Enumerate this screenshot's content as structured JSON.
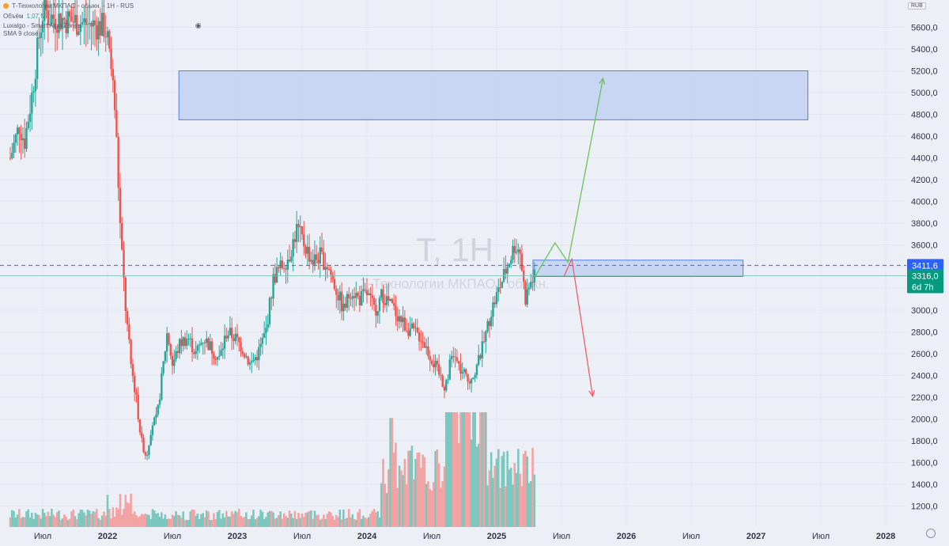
{
  "header": {
    "line1_symbol": "Т-Технологии МКПАО - обыкн. - 1Н - RUS",
    "line1_change": "",
    "line2_label": "Объём",
    "line2_value": "1,07 M",
    "line3_label": "Luxalgo - Smart Algo Zones",
    "line4_label": "SMA 9 close"
  },
  "currency": "RUB",
  "watermark": {
    "ticker": "T, 1H",
    "name": "Т-Технологии МКПАО - обыкн."
  },
  "price_labels": {
    "level_line": "3411,6",
    "last_price": "3316,0",
    "countdown": "6d 7h"
  },
  "colors": {
    "background": "#eceff6",
    "up": "#26a69a",
    "down": "#ef5350",
    "vol_up": "#7cc8bf",
    "vol_down": "#f3a3a3",
    "zone_fill": "#bccdf3",
    "zone_stroke": "#4f7ee0",
    "bull_arrow": "#6cc05a",
    "bear_arrow": "#f25c6a",
    "level_line": "#3d6bd6",
    "tag_blue": "#2962ff",
    "tag_green": "#089981"
  },
  "chart_data": {
    "type": "candlestick",
    "y_axis": {
      "min": 1000,
      "max": 5800,
      "ticks": [
        "5600,0",
        "5400,0",
        "5200,0",
        "5000,0",
        "4800,0",
        "4600,0",
        "4400,0",
        "4200,0",
        "4000,0",
        "3800,0",
        "3600,0",
        "3400,0",
        "3200,0",
        "3000,0",
        "2800,0",
        "2600,0",
        "2400,0",
        "2200,0",
        "2000,0",
        "1800,0",
        "1600,0",
        "1400,0",
        "1200,0"
      ],
      "tick_values": [
        5600,
        5400,
        5200,
        5000,
        4800,
        4600,
        4400,
        4200,
        4000,
        3800,
        3600,
        3400,
        3200,
        3000,
        2800,
        2600,
        2400,
        2200,
        2000,
        1800,
        1600,
        1400,
        1200
      ]
    },
    "x_axis": {
      "labels": [
        "Июл",
        "2022",
        "Июл",
        "2023",
        "Июл",
        "2024",
        "Июл",
        "2025",
        "Июл",
        "2026",
        "Июл",
        "2027",
        "Июл",
        "2028"
      ],
      "bold": [
        false,
        true,
        false,
        true,
        false,
        true,
        false,
        true,
        false,
        true,
        false,
        true,
        false,
        true
      ],
      "dates": [
        2021.5,
        2022.0,
        2022.5,
        2023.0,
        2023.5,
        2024.0,
        2024.5,
        2025.0,
        2025.5,
        2026.0,
        2026.5,
        2027.0,
        2027.5,
        2028.0
      ]
    },
    "price_path": [
      [
        2021.25,
        4400
      ],
      [
        2021.32,
        4700
      ],
      [
        2021.36,
        4550
      ],
      [
        2021.42,
        5000
      ],
      [
        2021.47,
        5500
      ],
      [
        2021.51,
        5800
      ],
      [
        2021.54,
        5700
      ],
      [
        2021.98,
        5600
      ],
      [
        2022.02,
        5350
      ],
      [
        2022.06,
        4800
      ],
      [
        2022.1,
        3700
      ],
      [
        2022.14,
        3000
      ],
      [
        2022.18,
        2500
      ],
      [
        2022.22,
        2200
      ],
      [
        2022.26,
        1800
      ],
      [
        2022.3,
        1650
      ],
      [
        2022.34,
        1950
      ],
      [
        2022.38,
        2000
      ],
      [
        2022.42,
        2400
      ],
      [
        2022.46,
        2800
      ],
      [
        2022.5,
        2500
      ],
      [
        2022.56,
        2700
      ],
      [
        2022.62,
        2750
      ],
      [
        2022.68,
        2600
      ],
      [
        2022.74,
        2750
      ],
      [
        2022.8,
        2650
      ],
      [
        2022.86,
        2550
      ],
      [
        2022.92,
        2800
      ],
      [
        2022.98,
        2750
      ],
      [
        2023.04,
        2650
      ],
      [
        2023.1,
        2500
      ],
      [
        2023.16,
        2600
      ],
      [
        2023.22,
        2800
      ],
      [
        2023.28,
        3300
      ],
      [
        2023.34,
        3400
      ],
      [
        2023.4,
        3500
      ],
      [
        2023.46,
        3750
      ],
      [
        2023.52,
        3600
      ],
      [
        2023.58,
        3450
      ],
      [
        2023.64,
        3500
      ],
      [
        2023.7,
        3400
      ],
      [
        2023.76,
        3200
      ],
      [
        2023.82,
        3000
      ],
      [
        2023.88,
        3200
      ],
      [
        2023.94,
        3100
      ],
      [
        2024.0,
        3150
      ],
      [
        2024.06,
        3000
      ],
      [
        2024.12,
        3150
      ],
      [
        2024.18,
        3050
      ],
      [
        2024.24,
        2950
      ],
      [
        2024.3,
        2850
      ],
      [
        2024.36,
        2800
      ],
      [
        2024.42,
        2750
      ],
      [
        2024.48,
        2600
      ],
      [
        2024.54,
        2450
      ],
      [
        2024.6,
        2300
      ],
      [
        2024.66,
        2600
      ],
      [
        2024.72,
        2450
      ],
      [
        2024.78,
        2350
      ],
      [
        2024.84,
        2450
      ],
      [
        2024.9,
        2700
      ],
      [
        2024.96,
        3000
      ],
      [
        2025.02,
        3200
      ],
      [
        2025.08,
        3400
      ],
      [
        2025.14,
        3600
      ],
      [
        2025.18,
        3550
      ],
      [
        2025.22,
        3100
      ],
      [
        2025.26,
        3250
      ],
      [
        2025.3,
        3316
      ]
    ],
    "volume_axis_min_price": 1000,
    "volume_axis_top_price": 2200,
    "volume_max": 100,
    "zones": [
      {
        "from": 2022.55,
        "to": 2027.4,
        "low": 4750,
        "high": 5200
      },
      {
        "from": 2025.28,
        "to": 2026.9,
        "low": 3310,
        "high": 3460
      }
    ],
    "level_line": 3411.6,
    "bull_path": [
      [
        2025.3,
        3316
      ],
      [
        2025.45,
        3620
      ],
      [
        2025.55,
        3440
      ],
      [
        2025.82,
        5130
      ]
    ],
    "bear_path": [
      [
        2025.52,
        3316
      ],
      [
        2025.58,
        3470
      ],
      [
        2025.74,
        2210
      ]
    ]
  }
}
